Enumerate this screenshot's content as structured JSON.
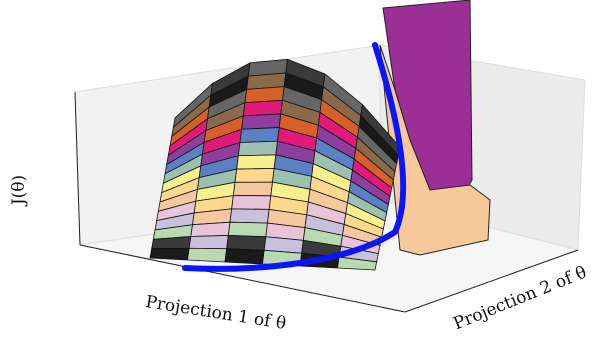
{
  "chart_data": {
    "type": "surface3d",
    "x_label": "Projection 1 of θ",
    "y_label": "Projection 2 of θ",
    "z_label": "J(θ)"
  }
}
